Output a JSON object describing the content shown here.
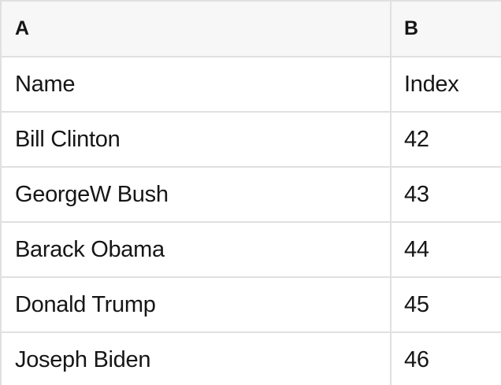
{
  "sheet": {
    "column_headers": {
      "a": "A",
      "b": "B"
    },
    "rows": [
      {
        "a": "Name",
        "b": "Index"
      },
      {
        "a": "Bill Clinton",
        "b": "42"
      },
      {
        "a": "GeorgeW Bush",
        "b": "43"
      },
      {
        "a": "Barack Obama",
        "b": "44"
      },
      {
        "a": "Donald Trump",
        "b": "45"
      },
      {
        "a": "Joseph Biden",
        "b": "46"
      }
    ],
    "colors": {
      "gridline": "#e0e0e0",
      "header_background": "#f7f7f7",
      "row_background": "#ffffff",
      "text": "#161616"
    }
  }
}
